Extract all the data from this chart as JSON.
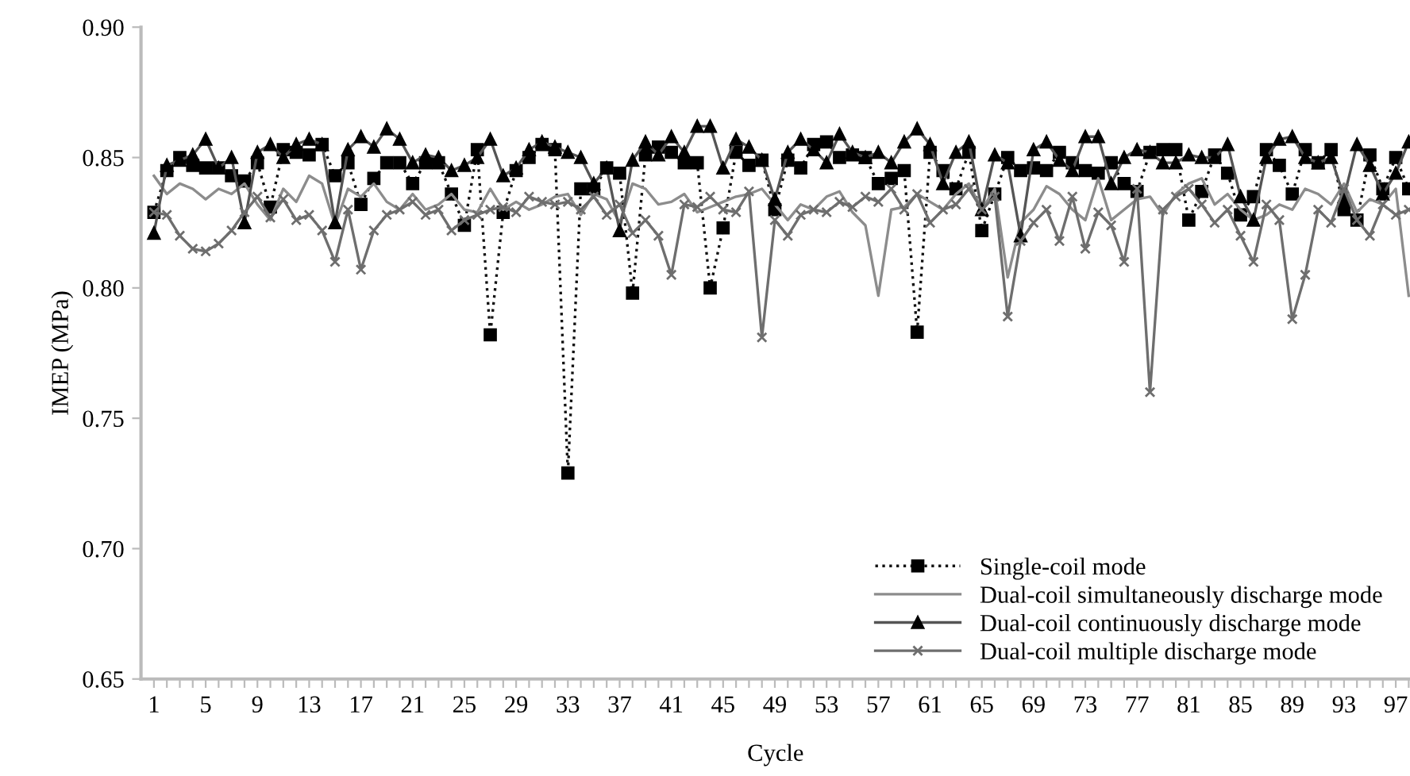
{
  "chart_data": {
    "type": "line",
    "xlabel": "Cycle",
    "ylabel": "IMEP (MPa)",
    "categories": [
      "1",
      null,
      null,
      null,
      "5",
      null,
      null,
      null,
      "9",
      null,
      null,
      null,
      "13",
      null,
      null,
      null,
      "17",
      null,
      null,
      null,
      "21",
      null,
      null,
      null,
      "25",
      null,
      null,
      null,
      "29",
      null,
      null,
      null,
      "33",
      null,
      null,
      null,
      "37",
      null,
      null,
      null,
      "41",
      null,
      null,
      null,
      "45",
      null,
      null,
      null,
      "49",
      null,
      null,
      null,
      "53",
      null,
      null,
      null,
      "57",
      null,
      null,
      null,
      "61",
      null,
      null,
      null,
      "65",
      null,
      null,
      null,
      "69",
      null,
      null,
      null,
      "73",
      null,
      null,
      null,
      "77",
      null,
      null,
      null,
      "81",
      null,
      null,
      null,
      "85",
      null,
      null,
      null,
      "89",
      null,
      null,
      null,
      "93",
      null,
      null,
      null,
      "97",
      null
    ],
    "ylim": [
      0.65,
      0.9
    ],
    "yticks": [
      {
        "value": 0.65,
        "label": "0.65"
      },
      {
        "value": 0.7,
        "label": "0.70"
      },
      {
        "value": 0.75,
        "label": "0.75"
      },
      {
        "value": 0.8,
        "label": "0.80"
      },
      {
        "value": 0.85,
        "label": "0.85"
      },
      {
        "value": 0.9,
        "label": "0.90"
      }
    ],
    "grid": false,
    "legend": "bottom right",
    "series": [
      {
        "name": "Single-coil mode",
        "color": "#111111",
        "marker": "square",
        "line_style": "dotted",
        "values": [
          0.829,
          0.845,
          0.85,
          0.847,
          0.846,
          0.846,
          0.843,
          0.841,
          0.848,
          0.831,
          0.853,
          0.852,
          0.851,
          0.855,
          0.843,
          0.848,
          0.832,
          0.842,
          0.848,
          0.848,
          0.84,
          0.848,
          0.848,
          0.836,
          0.824,
          0.853,
          0.782,
          0.829,
          0.845,
          0.85,
          0.855,
          0.853,
          0.729,
          0.838,
          0.838,
          0.846,
          0.844,
          0.798,
          0.851,
          0.854,
          0.852,
          0.848,
          0.848,
          0.8,
          0.823,
          0.852,
          0.847,
          0.849,
          0.83,
          0.849,
          0.846,
          0.855,
          0.856,
          0.85,
          0.851,
          0.85,
          0.84,
          0.842,
          0.845,
          0.783,
          0.852,
          0.845,
          0.838,
          0.852,
          0.822,
          0.836,
          0.85,
          0.845,
          0.846,
          0.845,
          0.852,
          0.848,
          0.845,
          0.844,
          0.848,
          0.84,
          0.837,
          0.852,
          0.853,
          0.853,
          0.826,
          0.837,
          0.851,
          0.844,
          0.828,
          0.835,
          0.853,
          0.847,
          0.836,
          0.853,
          0.848,
          0.853,
          0.83,
          0.826,
          0.851,
          0.838,
          0.85,
          0.838
        ]
      },
      {
        "name": "Dual-coil simultaneously discharge mode",
        "color": "#8c8c8c",
        "marker": "none",
        "line_style": "solid",
        "values": [
          0.843,
          0.836,
          0.84,
          0.838,
          0.834,
          0.838,
          0.836,
          0.84,
          0.832,
          0.826,
          0.838,
          0.833,
          0.843,
          0.84,
          0.824,
          0.838,
          0.835,
          0.84,
          0.833,
          0.83,
          0.836,
          0.83,
          0.832,
          0.836,
          0.83,
          0.829,
          0.838,
          0.83,
          0.833,
          0.83,
          0.832,
          0.835,
          0.836,
          0.828,
          0.836,
          0.834,
          0.825,
          0.84,
          0.838,
          0.832,
          0.833,
          0.836,
          0.829,
          0.831,
          0.833,
          0.835,
          0.836,
          0.838,
          0.832,
          0.826,
          0.832,
          0.83,
          0.835,
          0.837,
          0.829,
          0.824,
          0.797,
          0.83,
          0.831,
          0.836,
          0.833,
          0.83,
          0.836,
          0.84,
          0.83,
          0.838,
          0.804,
          0.825,
          0.83,
          0.839,
          0.836,
          0.83,
          0.826,
          0.842,
          0.826,
          0.83,
          0.834,
          0.835,
          0.828,
          0.836,
          0.84,
          0.842,
          0.832,
          0.836,
          0.83,
          0.826,
          0.828,
          0.832,
          0.83,
          0.838,
          0.836,
          0.832,
          0.84,
          0.829,
          0.834,
          0.832,
          0.838,
          0.797
        ]
      },
      {
        "name": "Dual-coil continuously discharge mode",
        "color": "#555555",
        "marker": "triangle",
        "line_style": "solid",
        "values": [
          0.821,
          0.847,
          0.849,
          0.851,
          0.857,
          0.846,
          0.85,
          0.825,
          0.852,
          0.855,
          0.85,
          0.855,
          0.857,
          0.855,
          0.825,
          0.853,
          0.858,
          0.854,
          0.861,
          0.857,
          0.848,
          0.851,
          0.85,
          0.845,
          0.847,
          0.85,
          0.857,
          0.843,
          0.846,
          0.853,
          0.856,
          0.854,
          0.852,
          0.85,
          0.84,
          0.846,
          0.822,
          0.849,
          0.856,
          0.851,
          0.858,
          0.852,
          0.862,
          0.862,
          0.846,
          0.857,
          0.854,
          0.849,
          0.834,
          0.852,
          0.857,
          0.853,
          0.848,
          0.859,
          0.852,
          0.85,
          0.852,
          0.848,
          0.856,
          0.861,
          0.855,
          0.84,
          0.852,
          0.856,
          0.83,
          0.851,
          0.848,
          0.82,
          0.853,
          0.856,
          0.849,
          0.845,
          0.858,
          0.858,
          0.84,
          0.85,
          0.853,
          0.852,
          0.848,
          0.848,
          0.851,
          0.85,
          0.85,
          0.855,
          0.835,
          0.826,
          0.85,
          0.857,
          0.858,
          0.85,
          0.848,
          0.85,
          0.835,
          0.855,
          0.847,
          0.836,
          0.844,
          0.856
        ]
      },
      {
        "name": "Dual-coil multiple discharge mode",
        "color": "#6e6e6e",
        "marker": "cross",
        "line_style": "solid",
        "values": [
          0.829,
          0.828,
          0.82,
          0.815,
          0.814,
          0.817,
          0.822,
          0.829,
          0.835,
          0.827,
          0.834,
          0.826,
          0.828,
          0.822,
          0.81,
          0.83,
          0.807,
          0.822,
          0.828,
          0.83,
          0.833,
          0.828,
          0.83,
          0.822,
          0.826,
          0.828,
          0.83,
          0.831,
          0.829,
          0.835,
          0.833,
          0.832,
          0.833,
          0.83,
          0.835,
          0.828,
          0.832,
          0.821,
          0.826,
          0.82,
          0.805,
          0.832,
          0.831,
          0.835,
          0.83,
          0.829,
          0.837,
          0.781,
          0.826,
          0.82,
          0.828,
          0.83,
          0.829,
          0.833,
          0.831,
          0.835,
          0.833,
          0.838,
          0.83,
          0.836,
          0.825,
          0.83,
          0.832,
          0.838,
          0.83,
          0.835,
          0.789,
          0.818,
          0.825,
          0.83,
          0.818,
          0.835,
          0.815,
          0.829,
          0.824,
          0.81,
          0.838,
          0.76,
          0.83,
          0.835,
          0.838,
          0.832,
          0.825,
          0.83,
          0.82,
          0.81,
          0.832,
          0.826,
          0.788,
          0.805,
          0.83,
          0.825,
          0.838,
          0.826,
          0.82,
          0.832,
          0.828,
          0.83
        ]
      }
    ]
  }
}
